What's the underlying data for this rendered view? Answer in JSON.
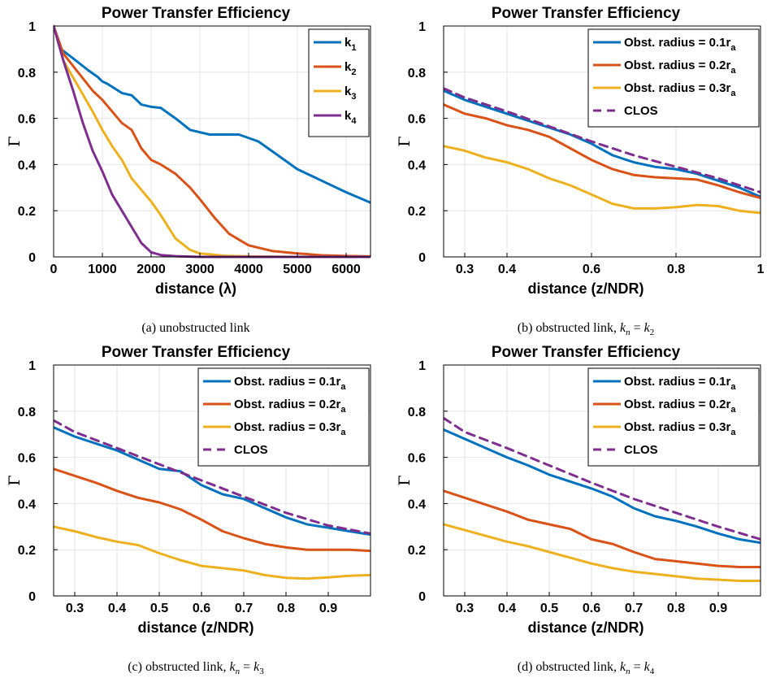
{
  "chart_data": [
    {
      "id": "a",
      "type": "line",
      "title": "Power Transfer Efficiency",
      "xlabel": "distance (λ)",
      "ylabel": "Γ",
      "caption": "(a) unobstructed link",
      "caption_parts": {
        "pre": "(a) unobstructed link",
        "k1": "",
        "k2": ""
      },
      "xlim": [
        0,
        6500
      ],
      "ylim": [
        0,
        1
      ],
      "xticks": [
        0,
        1000,
        2000,
        3000,
        4000,
        5000,
        6000
      ],
      "xtick_labels": [
        "0",
        "1000",
        "2000",
        "3000",
        "4000",
        "5000",
        "6000"
      ],
      "yticks": [
        0,
        0.2,
        0.4,
        0.6,
        0.8,
        1
      ],
      "ytick_labels": [
        "0",
        "0.2",
        "0.4",
        "0.6",
        "0.8",
        "1"
      ],
      "grid": true,
      "legend_position": "top-right",
      "series": [
        {
          "name": "k",
          "sub": "1",
          "color": "#0072BD",
          "dash": false,
          "x": [
            0,
            150,
            400,
            700,
            900,
            1000,
            1100,
            1250,
            1400,
            1600,
            1800,
            2000,
            2200,
            2500,
            2800,
            3200,
            3800,
            4200,
            4600,
            5000,
            5500,
            6000,
            6500
          ],
          "y": [
            1,
            0.9,
            0.86,
            0.81,
            0.78,
            0.76,
            0.75,
            0.73,
            0.71,
            0.7,
            0.66,
            0.65,
            0.645,
            0.6,
            0.55,
            0.53,
            0.53,
            0.5,
            0.44,
            0.38,
            0.33,
            0.28,
            0.235
          ]
        },
        {
          "name": "k",
          "sub": "2",
          "color": "#D95319",
          "dash": false,
          "x": [
            0,
            200,
            500,
            800,
            1000,
            1200,
            1400,
            1600,
            1800,
            2000,
            2200,
            2500,
            2800,
            3000,
            3300,
            3600,
            4000,
            4500,
            5000,
            5500,
            6000,
            6500
          ],
          "y": [
            1,
            0.88,
            0.8,
            0.72,
            0.68,
            0.63,
            0.58,
            0.55,
            0.47,
            0.42,
            0.4,
            0.36,
            0.3,
            0.25,
            0.17,
            0.1,
            0.05,
            0.025,
            0.015,
            0.007,
            0.004,
            0.002
          ]
        },
        {
          "name": "k",
          "sub": "3",
          "color": "#EDB120",
          "dash": false,
          "x": [
            0,
            200,
            500,
            800,
            1000,
            1200,
            1400,
            1600,
            1800,
            2000,
            2200,
            2500,
            2800,
            3000,
            3500,
            4000,
            5000,
            6500
          ],
          "y": [
            1,
            0.85,
            0.74,
            0.63,
            0.55,
            0.48,
            0.42,
            0.34,
            0.29,
            0.24,
            0.18,
            0.08,
            0.03,
            0.015,
            0.005,
            0.002,
            0.0,
            0.0
          ]
        },
        {
          "name": "k",
          "sub": "4",
          "color": "#7E2F8E",
          "dash": false,
          "x": [
            0,
            200,
            400,
            600,
            800,
            1000,
            1200,
            1400,
            1600,
            1800,
            2000,
            2200,
            2500,
            3000,
            4000,
            6500
          ],
          "y": [
            1,
            0.85,
            0.72,
            0.58,
            0.46,
            0.37,
            0.27,
            0.2,
            0.13,
            0.06,
            0.02,
            0.008,
            0.003,
            0.0,
            0.0,
            0.0
          ]
        }
      ]
    },
    {
      "id": "b",
      "type": "line",
      "title": "Power Transfer Efficiency",
      "xlabel": "distance (z/NDR)",
      "ylabel": "Γ",
      "caption": "(b) obstructed link, kn = k2",
      "caption_parts": {
        "pre": "(b) obstructed link, ",
        "k1": "n",
        "k2": "2"
      },
      "xlim": [
        0.25,
        1.0
      ],
      "ylim": [
        0,
        1
      ],
      "xticks": [
        0.3,
        0.4,
        0.6,
        0.8,
        1.0
      ],
      "xtick_labels": [
        "0.3",
        "0.4",
        "0.6",
        "0.8",
        "1"
      ],
      "yticks": [
        0,
        0.2,
        0.4,
        0.6,
        0.8,
        1
      ],
      "ytick_labels": [
        "0",
        "0.2",
        "0.4",
        "0.6",
        "0.8",
        "1"
      ],
      "grid": true,
      "legend_position": "top-right",
      "series": [
        {
          "name": "Obst. radius = 0.1r",
          "sub": "a",
          "color": "#0072BD",
          "dash": false,
          "x": [
            0.25,
            0.3,
            0.35,
            0.4,
            0.45,
            0.5,
            0.55,
            0.6,
            0.65,
            0.7,
            0.75,
            0.8,
            0.85,
            0.9,
            0.95,
            1.0
          ],
          "y": [
            0.72,
            0.68,
            0.65,
            0.62,
            0.59,
            0.56,
            0.53,
            0.49,
            0.44,
            0.41,
            0.39,
            0.38,
            0.36,
            0.33,
            0.3,
            0.26
          ]
        },
        {
          "name": "Obst. radius = 0.2r",
          "sub": "a",
          "color": "#D95319",
          "dash": false,
          "x": [
            0.25,
            0.3,
            0.35,
            0.4,
            0.45,
            0.5,
            0.55,
            0.6,
            0.65,
            0.7,
            0.75,
            0.8,
            0.85,
            0.9,
            0.95,
            1.0
          ],
          "y": [
            0.66,
            0.62,
            0.6,
            0.57,
            0.55,
            0.52,
            0.47,
            0.42,
            0.38,
            0.355,
            0.345,
            0.34,
            0.335,
            0.31,
            0.28,
            0.255
          ]
        },
        {
          "name": "Obst. radius = 0.3r",
          "sub": "a",
          "color": "#EDB120",
          "dash": false,
          "x": [
            0.25,
            0.3,
            0.35,
            0.4,
            0.45,
            0.5,
            0.55,
            0.6,
            0.65,
            0.7,
            0.75,
            0.8,
            0.85,
            0.9,
            0.95,
            1.0
          ],
          "y": [
            0.48,
            0.46,
            0.43,
            0.41,
            0.38,
            0.34,
            0.31,
            0.27,
            0.23,
            0.21,
            0.21,
            0.215,
            0.225,
            0.22,
            0.2,
            0.19
          ]
        },
        {
          "name": "CLOS",
          "sub": "",
          "color": "#7E2F8E",
          "dash": true,
          "x": [
            0.25,
            0.3,
            0.4,
            0.5,
            0.6,
            0.7,
            0.8,
            0.9,
            1.0
          ],
          "y": [
            0.73,
            0.69,
            0.63,
            0.565,
            0.5,
            0.44,
            0.39,
            0.34,
            0.28
          ]
        }
      ]
    },
    {
      "id": "c",
      "type": "line",
      "title": "Power Transfer Efficiency",
      "xlabel": "distance (z/NDR)",
      "ylabel": "Γ",
      "caption": "(c) obstructed link, kn = k3",
      "caption_parts": {
        "pre": "(c) obstructed link, ",
        "k1": "n",
        "k2": "3"
      },
      "xlim": [
        0.25,
        1.0
      ],
      "ylim": [
        0,
        1
      ],
      "xticks": [
        0.3,
        0.4,
        0.5,
        0.6,
        0.7,
        0.8,
        0.9
      ],
      "xtick_labels": [
        "0.3",
        "0.4",
        "0.5",
        "0.6",
        "0.7",
        "0.8",
        "0.9"
      ],
      "yticks": [
        0,
        0.2,
        0.4,
        0.6,
        0.8,
        1
      ],
      "ytick_labels": [
        "0",
        "0.2",
        "0.4",
        "0.6",
        "0.8",
        "1"
      ],
      "grid": true,
      "legend_position": "top-right",
      "series": [
        {
          "name": "Obst. radius = 0.1r",
          "sub": "a",
          "color": "#0072BD",
          "dash": false,
          "x": [
            0.25,
            0.3,
            0.35,
            0.4,
            0.45,
            0.5,
            0.55,
            0.6,
            0.65,
            0.7,
            0.75,
            0.8,
            0.85,
            0.9,
            0.95,
            1.0
          ],
          "y": [
            0.73,
            0.69,
            0.66,
            0.63,
            0.59,
            0.55,
            0.54,
            0.48,
            0.44,
            0.42,
            0.38,
            0.34,
            0.31,
            0.295,
            0.28,
            0.265
          ]
        },
        {
          "name": "Obst. radius = 0.2r",
          "sub": "a",
          "color": "#D95319",
          "dash": false,
          "x": [
            0.25,
            0.3,
            0.35,
            0.4,
            0.45,
            0.5,
            0.55,
            0.6,
            0.65,
            0.7,
            0.75,
            0.8,
            0.85,
            0.9,
            0.95,
            1.0
          ],
          "y": [
            0.55,
            0.52,
            0.49,
            0.455,
            0.425,
            0.405,
            0.375,
            0.33,
            0.28,
            0.25,
            0.225,
            0.21,
            0.2,
            0.2,
            0.2,
            0.195
          ]
        },
        {
          "name": "Obst. radius = 0.3r",
          "sub": "a",
          "color": "#EDB120",
          "dash": false,
          "x": [
            0.25,
            0.3,
            0.35,
            0.4,
            0.45,
            0.5,
            0.55,
            0.6,
            0.65,
            0.7,
            0.75,
            0.8,
            0.85,
            0.9,
            0.95,
            1.0
          ],
          "y": [
            0.3,
            0.28,
            0.255,
            0.235,
            0.22,
            0.185,
            0.155,
            0.13,
            0.12,
            0.11,
            0.09,
            0.078,
            0.075,
            0.08,
            0.087,
            0.09
          ]
        },
        {
          "name": "CLOS",
          "sub": "",
          "color": "#7E2F8E",
          "dash": true,
          "x": [
            0.25,
            0.3,
            0.4,
            0.5,
            0.6,
            0.7,
            0.8,
            0.9,
            1.0
          ],
          "y": [
            0.76,
            0.71,
            0.64,
            0.57,
            0.5,
            0.43,
            0.36,
            0.305,
            0.27
          ]
        }
      ]
    },
    {
      "id": "d",
      "type": "line",
      "title": "Power Transfer Efficiency",
      "xlabel": "distance (z/NDR)",
      "ylabel": "Γ",
      "caption": "(d) obstructed link, kn = k4",
      "caption_parts": {
        "pre": "(d) obstructed link, ",
        "k1": "n",
        "k2": "4"
      },
      "xlim": [
        0.25,
        1.0
      ],
      "ylim": [
        0,
        1
      ],
      "xticks": [
        0.3,
        0.4,
        0.5,
        0.6,
        0.7,
        0.8,
        0.9
      ],
      "xtick_labels": [
        "0.3",
        "0.4",
        "0.5",
        "0.6",
        "0.7",
        "0.8",
        "0.9"
      ],
      "yticks": [
        0,
        0.2,
        0.4,
        0.6,
        0.8,
        1
      ],
      "ytick_labels": [
        "0",
        "0.2",
        "0.4",
        "0.6",
        "0.8",
        "1"
      ],
      "grid": true,
      "legend_position": "top-right",
      "series": [
        {
          "name": "Obst. radius = 0.1r",
          "sub": "a",
          "color": "#0072BD",
          "dash": false,
          "x": [
            0.25,
            0.3,
            0.35,
            0.4,
            0.45,
            0.5,
            0.55,
            0.6,
            0.65,
            0.7,
            0.75,
            0.8,
            0.85,
            0.9,
            0.95,
            1.0
          ],
          "y": [
            0.72,
            0.68,
            0.64,
            0.6,
            0.565,
            0.525,
            0.495,
            0.465,
            0.43,
            0.38,
            0.345,
            0.325,
            0.3,
            0.27,
            0.245,
            0.23
          ]
        },
        {
          "name": "Obst. radius = 0.2r",
          "sub": "a",
          "color": "#D95319",
          "dash": false,
          "x": [
            0.25,
            0.3,
            0.35,
            0.4,
            0.45,
            0.5,
            0.55,
            0.6,
            0.65,
            0.7,
            0.75,
            0.8,
            0.85,
            0.9,
            0.95,
            1.0
          ],
          "y": [
            0.455,
            0.425,
            0.395,
            0.365,
            0.33,
            0.31,
            0.29,
            0.245,
            0.225,
            0.19,
            0.16,
            0.15,
            0.14,
            0.13,
            0.125,
            0.125
          ]
        },
        {
          "name": "Obst. radius = 0.3r",
          "sub": "a",
          "color": "#EDB120",
          "dash": false,
          "x": [
            0.25,
            0.3,
            0.35,
            0.4,
            0.45,
            0.5,
            0.55,
            0.6,
            0.65,
            0.7,
            0.75,
            0.8,
            0.85,
            0.9,
            0.95,
            1.0
          ],
          "y": [
            0.31,
            0.285,
            0.26,
            0.235,
            0.215,
            0.19,
            0.165,
            0.14,
            0.12,
            0.105,
            0.095,
            0.085,
            0.075,
            0.07,
            0.065,
            0.065
          ]
        },
        {
          "name": "CLOS",
          "sub": "",
          "color": "#7E2F8E",
          "dash": true,
          "x": [
            0.25,
            0.3,
            0.4,
            0.5,
            0.6,
            0.7,
            0.8,
            0.9,
            1.0
          ],
          "y": [
            0.77,
            0.71,
            0.64,
            0.565,
            0.49,
            0.42,
            0.36,
            0.3,
            0.245
          ]
        }
      ]
    }
  ]
}
